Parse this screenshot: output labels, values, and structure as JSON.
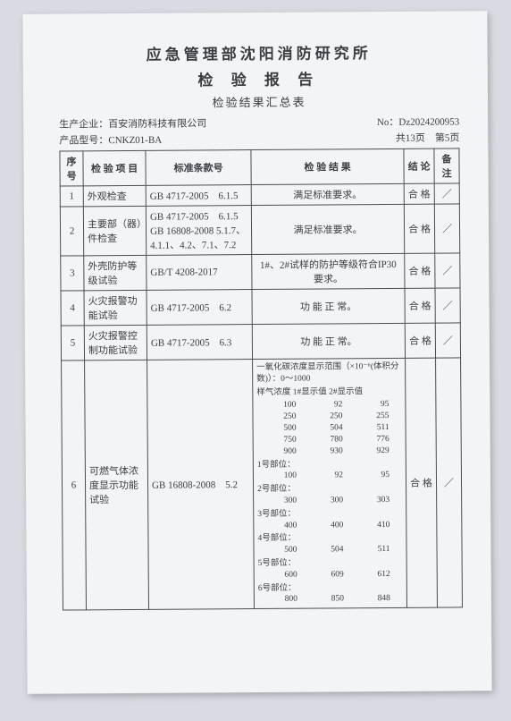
{
  "header": {
    "org": "应急管理部沈阳消防研究所",
    "report": "检 验 报 告",
    "subtitle": "检验结果汇总表",
    "doc_no_label": "No：",
    "doc_no": "Dz2024200953",
    "pages": "共13页　第5页",
    "maker_label": "生产企业：",
    "maker": "百安消防科技有限公司",
    "model_label": "产品型号：",
    "model": "CNKZ01-BA"
  },
  "columns": {
    "idx": "序号",
    "item": "检 验 项 目",
    "std": "标准条款号",
    "result": "检 验 结 果",
    "conclusion": "结 论",
    "remark": "备注"
  },
  "rows": [
    {
      "idx": "1",
      "item": "外观检查",
      "std": "GB 4717-2005　6.1.5",
      "result": "满足标准要求。",
      "conclusion": "合 格",
      "remark": "／"
    },
    {
      "idx": "2",
      "item": "主要部（器）件检查",
      "std": "GB 4717-2005　6.1.5\nGB 16808-2008 5.1.7、4.1.1、4.2、7.1、7.2",
      "result": "满足标准要求。",
      "conclusion": "合 格",
      "remark": "／"
    },
    {
      "idx": "3",
      "item": "外壳防护等级试验",
      "std": "GB/T 4208-2017",
      "result": "1#、2#试样的防护等级符合IP30要求。",
      "conclusion": "合 格",
      "remark": "／"
    },
    {
      "idx": "4",
      "item": "火灾报警功能试验",
      "std": "GB 4717-2005　6.2",
      "result": "功 能 正 常。",
      "conclusion": "合 格",
      "remark": "／"
    },
    {
      "idx": "5",
      "item": "火灾报警控制功能试验",
      "std": "GB 4717-2005　6.3",
      "result": "功 能 正 常。",
      "conclusion": "合 格",
      "remark": "／"
    }
  ],
  "row6": {
    "idx": "6",
    "item": "可燃气体浓度显示功能试验",
    "std": "GB 16808-2008　5.2",
    "conclusion": "合 格",
    "remark": "／",
    "intro1": "一氧化碳浓度显示范围（×10⁻⁶(体积分数)）：0～1000",
    "intro2": "样气浓度  1#显示值  2#显示值",
    "main_table": [
      [
        "100",
        "92",
        "95"
      ],
      [
        "250",
        "250",
        "255"
      ],
      [
        "500",
        "504",
        "511"
      ],
      [
        "750",
        "780",
        "776"
      ],
      [
        "900",
        "930",
        "929"
      ]
    ],
    "sections": [
      {
        "label": "1号部位：",
        "row": [
          "100",
          "92",
          "95"
        ]
      },
      {
        "label": "2号部位：",
        "row": [
          "300",
          "300",
          "303"
        ]
      },
      {
        "label": "3号部位：",
        "row": [
          "400",
          "400",
          "410"
        ]
      },
      {
        "label": "4号部位：",
        "row": [
          "500",
          "504",
          "511"
        ]
      },
      {
        "label": "5号部位：",
        "row": [
          "600",
          "609",
          "612"
        ]
      },
      {
        "label": "6号部位：",
        "row": [
          "800",
          "850",
          "848"
        ]
      }
    ]
  }
}
